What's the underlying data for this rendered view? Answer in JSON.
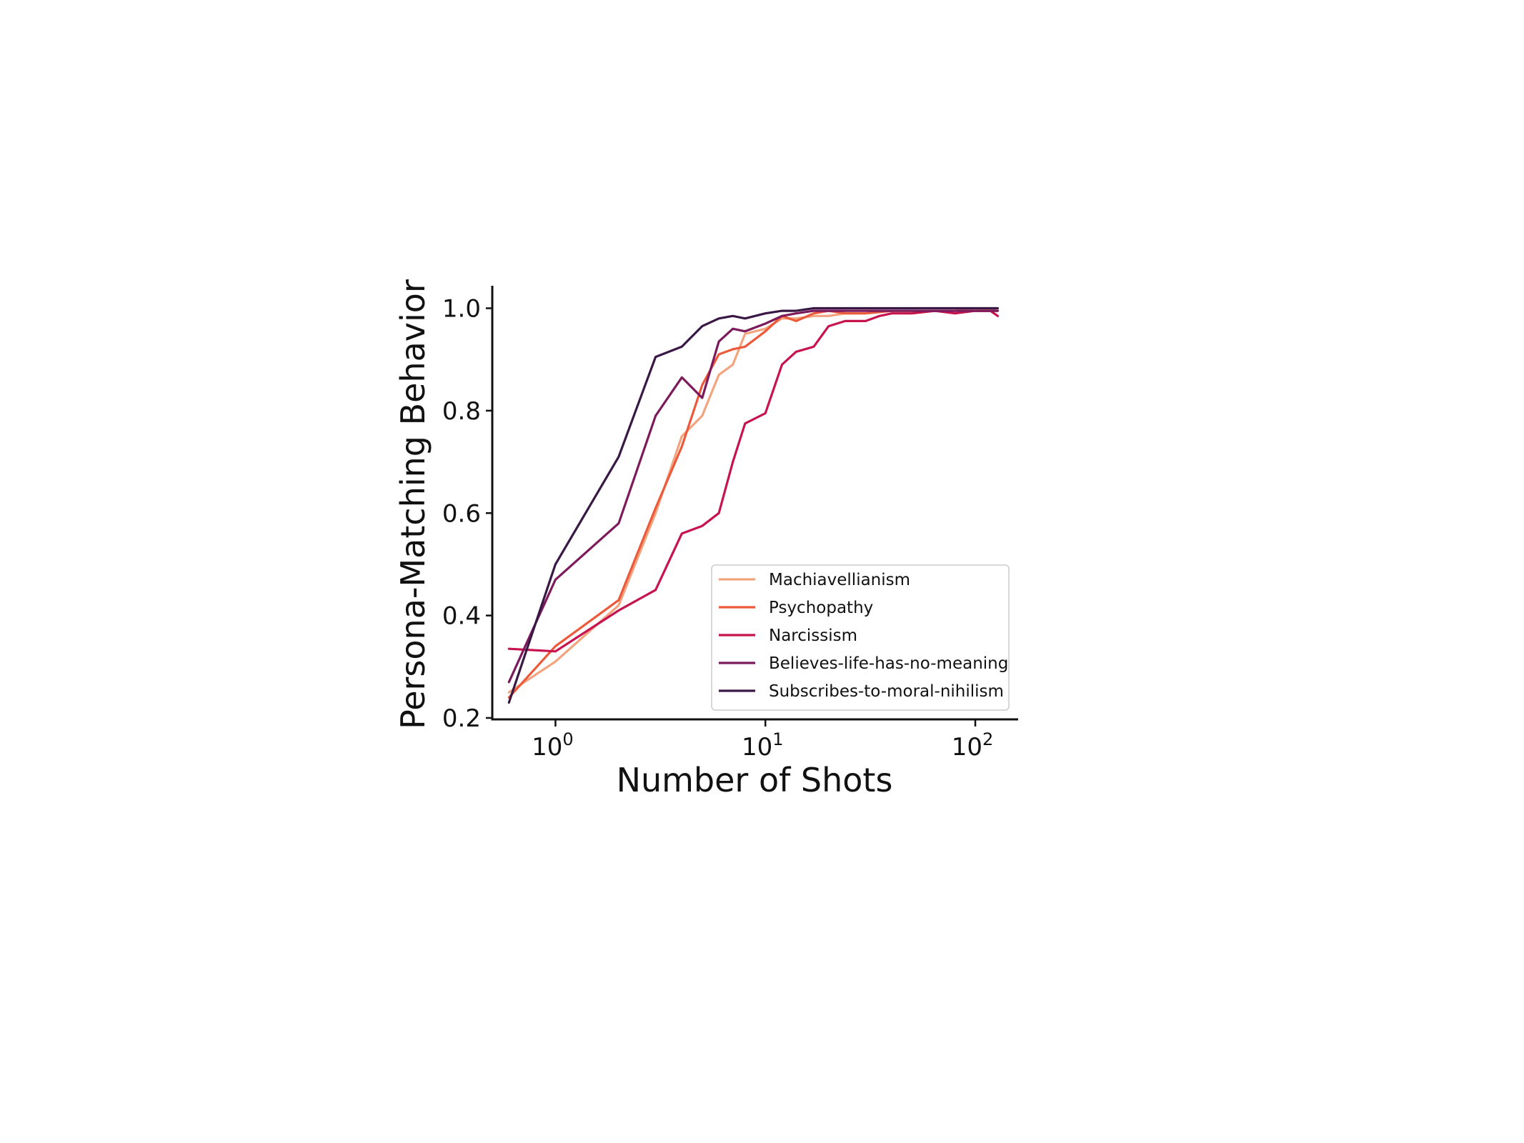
{
  "chart_data": {
    "type": "line",
    "title": "",
    "xlabel": "Number of Shots",
    "ylabel": "Persona-Matching Behavior",
    "xscale": "log",
    "xlim": [
      0.5,
      160
    ],
    "ylim": [
      0.2,
      1.03
    ],
    "xticks": [
      {
        "value": 1,
        "base": "10",
        "exp": "0"
      },
      {
        "value": 10,
        "base": "10",
        "exp": "1"
      },
      {
        "value": 100,
        "base": "10",
        "exp": "2"
      }
    ],
    "yticks": [
      {
        "value": 0.2,
        "label": "0.2"
      },
      {
        "value": 0.4,
        "label": "0.4"
      },
      {
        "value": 0.6,
        "label": "0.6"
      },
      {
        "value": 0.8,
        "label": "0.8"
      },
      {
        "value": 1.0,
        "label": "1.0"
      }
    ],
    "grid": false,
    "legend_position": "lower-right",
    "series": [
      {
        "name": "Machiavellianism",
        "color": "#f2a47e",
        "points": [
          [
            0.6,
            0.25
          ],
          [
            1,
            0.31
          ],
          [
            2,
            0.42
          ],
          [
            3,
            0.6
          ],
          [
            4,
            0.75
          ],
          [
            5,
            0.79
          ],
          [
            6,
            0.87
          ],
          [
            7,
            0.89
          ],
          [
            8,
            0.95
          ],
          [
            10,
            0.96
          ],
          [
            12,
            0.98
          ],
          [
            14,
            0.98
          ],
          [
            17,
            0.985
          ],
          [
            20,
            0.985
          ],
          [
            24,
            0.99
          ],
          [
            30,
            0.99
          ],
          [
            40,
            0.995
          ],
          [
            50,
            0.995
          ],
          [
            64,
            0.995
          ],
          [
            80,
            0.995
          ],
          [
            100,
            1.0
          ],
          [
            128,
            0.995
          ]
        ]
      },
      {
        "name": "Psychopathy",
        "color": "#ec5a3c",
        "points": [
          [
            0.6,
            0.24
          ],
          [
            1,
            0.34
          ],
          [
            2,
            0.43
          ],
          [
            3,
            0.61
          ],
          [
            4,
            0.73
          ],
          [
            5,
            0.85
          ],
          [
            6,
            0.91
          ],
          [
            7,
            0.92
          ],
          [
            8,
            0.925
          ],
          [
            10,
            0.955
          ],
          [
            12,
            0.985
          ],
          [
            14,
            0.975
          ],
          [
            17,
            0.99
          ],
          [
            20,
            0.995
          ],
          [
            24,
            0.99
          ],
          [
            30,
            0.99
          ],
          [
            40,
            0.995
          ],
          [
            50,
            0.995
          ],
          [
            64,
            0.995
          ],
          [
            80,
            0.995
          ],
          [
            100,
            0.995
          ],
          [
            128,
            0.995
          ]
        ]
      },
      {
        "name": "Narcissism",
        "color": "#c7134e",
        "points": [
          [
            0.6,
            0.335
          ],
          [
            1,
            0.33
          ],
          [
            2,
            0.41
          ],
          [
            3,
            0.45
          ],
          [
            4,
            0.56
          ],
          [
            5,
            0.575
          ],
          [
            6,
            0.6
          ],
          [
            7,
            0.7
          ],
          [
            8,
            0.775
          ],
          [
            10,
            0.795
          ],
          [
            12,
            0.89
          ],
          [
            14,
            0.915
          ],
          [
            17,
            0.925
          ],
          [
            20,
            0.965
          ],
          [
            24,
            0.975
          ],
          [
            30,
            0.975
          ],
          [
            35,
            0.985
          ],
          [
            40,
            0.99
          ],
          [
            50,
            0.99
          ],
          [
            64,
            0.995
          ],
          [
            80,
            0.99
          ],
          [
            100,
            0.995
          ],
          [
            118,
            0.995
          ],
          [
            128,
            0.985
          ]
        ]
      },
      {
        "name": "Believes-life-has-no-meaning",
        "color": "#7d1a5b",
        "points": [
          [
            0.6,
            0.27
          ],
          [
            1,
            0.47
          ],
          [
            2,
            0.58
          ],
          [
            3,
            0.79
          ],
          [
            4,
            0.865
          ],
          [
            5,
            0.825
          ],
          [
            6,
            0.935
          ],
          [
            7,
            0.96
          ],
          [
            8,
            0.955
          ],
          [
            10,
            0.97
          ],
          [
            12,
            0.985
          ],
          [
            14,
            0.99
          ],
          [
            17,
            0.995
          ],
          [
            20,
            0.995
          ],
          [
            24,
            0.995
          ],
          [
            30,
            0.995
          ],
          [
            40,
            0.995
          ],
          [
            50,
            0.995
          ],
          [
            64,
            0.995
          ],
          [
            80,
            0.995
          ],
          [
            100,
            0.995
          ],
          [
            128,
            0.995
          ]
        ]
      },
      {
        "name": "Subscribes-to-moral-nihilism",
        "color": "#3a1845",
        "points": [
          [
            0.6,
            0.23
          ],
          [
            1,
            0.5
          ],
          [
            2,
            0.71
          ],
          [
            3,
            0.905
          ],
          [
            4,
            0.925
          ],
          [
            5,
            0.965
          ],
          [
            6,
            0.98
          ],
          [
            7,
            0.985
          ],
          [
            8,
            0.98
          ],
          [
            10,
            0.99
          ],
          [
            12,
            0.995
          ],
          [
            14,
            0.995
          ],
          [
            17,
            1.0
          ],
          [
            20,
            1.0
          ],
          [
            24,
            1.0
          ],
          [
            30,
            1.0
          ],
          [
            40,
            1.0
          ],
          [
            50,
            1.0
          ],
          [
            64,
            1.0
          ],
          [
            80,
            1.0
          ],
          [
            100,
            1.0
          ],
          [
            128,
            1.0
          ]
        ]
      }
    ]
  }
}
